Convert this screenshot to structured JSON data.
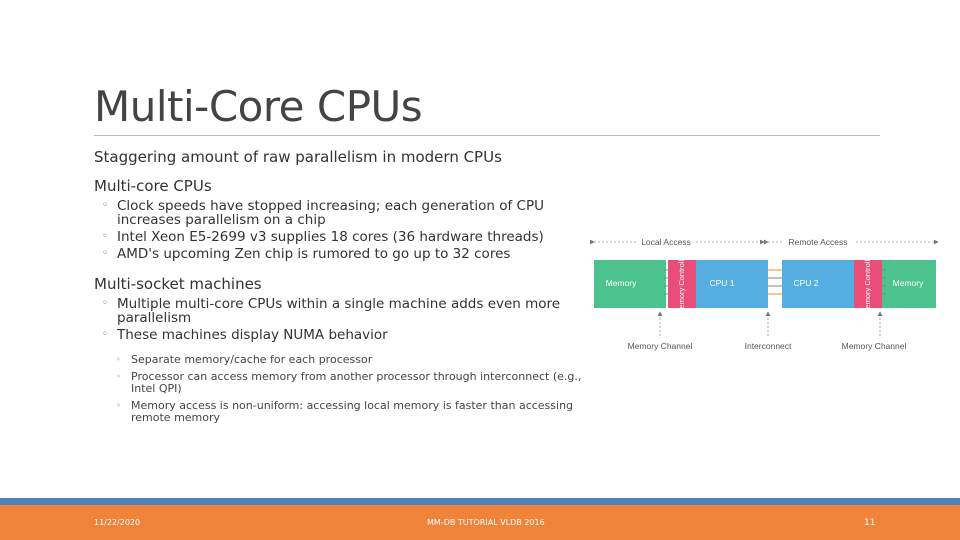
{
  "slide": {
    "title": "Multi-Core CPUs",
    "intro": "Staggering amount of raw parallelism in modern CPUs",
    "sections": [
      {
        "heading": "Multi-core CPUs",
        "bullets": [
          "Clock speeds have stopped increasing; each generation of CPU increases parallelism on a chip",
          "Intel Xeon E5-2699 v3 supplies 18 cores (36 hardware threads)",
          "AMD's upcoming Zen chip is rumored to go up to 32 cores"
        ]
      },
      {
        "heading": "Multi-socket machines",
        "bullets": [
          "Multiple multi-core CPUs within a single machine adds even more parallelism",
          "These machines display NUMA behavior"
        ],
        "sub_bullets": [
          "Separate memory/cache for each processor",
          "Processor can access memory from another processor through interconnect (e.g., Intel QPI)",
          "Memory access is non-uniform: accessing local memory is faster than accessing remote memory"
        ]
      }
    ]
  },
  "diagram": {
    "local_access": "Local Access",
    "remote_access": "Remote Access",
    "memory_left": "Memory",
    "controller_left": "Memory Controller",
    "cpu1": "CPU 1",
    "cpu2": "CPU 2",
    "controller_right": "Memory Controller",
    "memory_right": "Memory",
    "memory_channel_left": "Memory Channel",
    "interconnect": "Interconnect",
    "memory_channel_right": "Memory Channel",
    "colors": {
      "memory": "#4cc28e",
      "controller": "#e94d78",
      "cpu": "#54aee2",
      "arrow": "#777777",
      "interconnect_line": "#f0a540"
    }
  },
  "footer": {
    "date": "11/22/2020",
    "center": "MM-DB TUTORIAL VLDB 2016",
    "page": "11"
  },
  "colors": {
    "bar_blue": "#4f81bd",
    "bar_orange": "#f0833a"
  }
}
